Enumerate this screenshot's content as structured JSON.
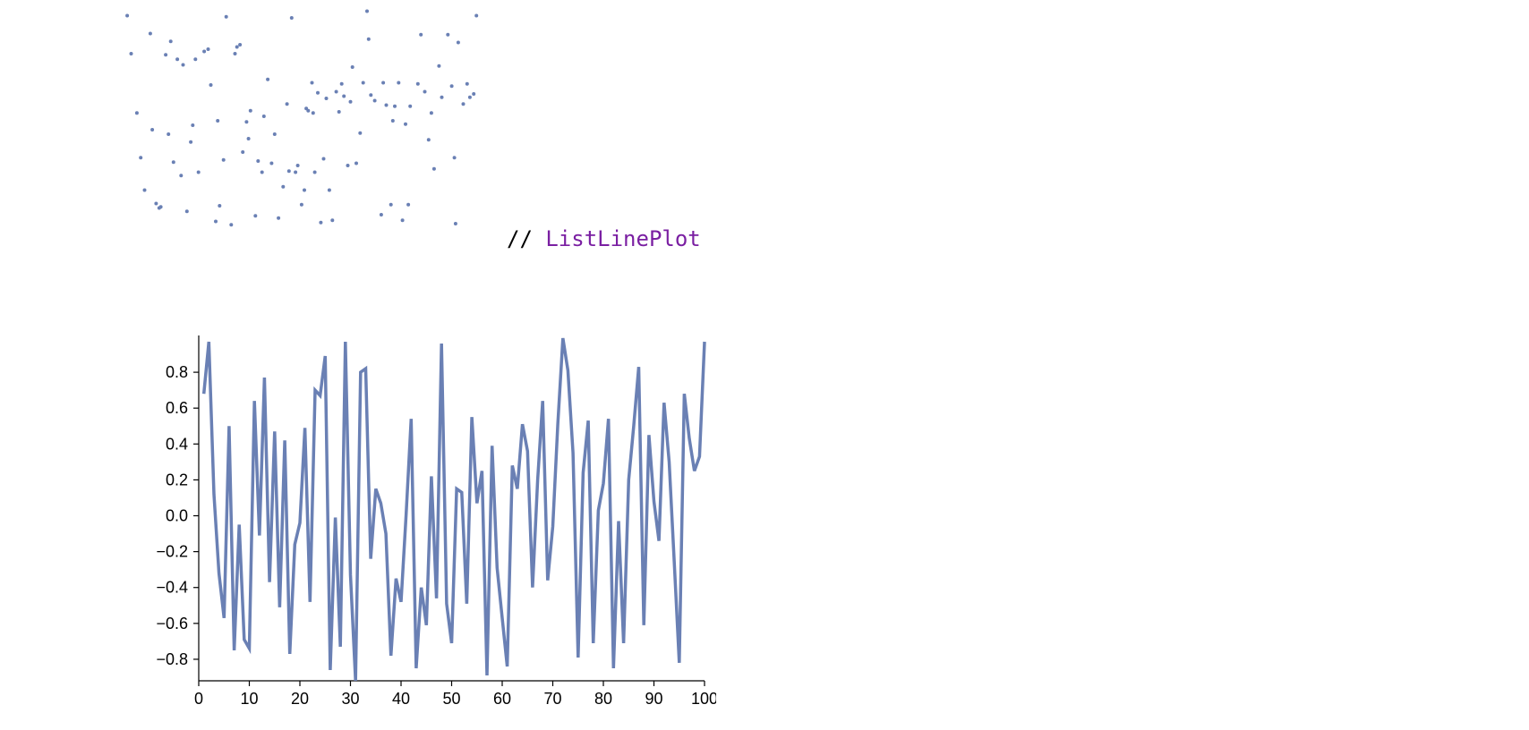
{
  "code_comment": {
    "slashes": "// ",
    "keyword": "ListLinePlot"
  },
  "colors": {
    "series": "#6a80b4",
    "keyword": "#7a1fa2"
  },
  "chart_data": [
    {
      "type": "scatter",
      "xlim": [
        0,
        1
      ],
      "ylim": [
        0,
        1
      ],
      "series": [
        {
          "points": [
            [
              0.005,
              0.97
            ],
            [
              0.015,
              0.8
            ],
            [
              0.03,
              0.535
            ],
            [
              0.04,
              0.335
            ],
            [
              0.05,
              0.19
            ],
            [
              0.065,
              0.89
            ],
            [
              0.07,
              0.46
            ],
            [
              0.08,
              0.13
            ],
            [
              0.088,
              0.11
            ],
            [
              0.092,
              0.115
            ],
            [
              0.105,
              0.795
            ],
            [
              0.112,
              0.44
            ],
            [
              0.118,
              0.855
            ],
            [
              0.125,
              0.315
            ],
            [
              0.135,
              0.775
            ],
            [
              0.145,
              0.255
            ],
            [
              0.15,
              0.75
            ],
            [
              0.16,
              0.095
            ],
            [
              0.17,
              0.405
            ],
            [
              0.175,
              0.48
            ],
            [
              0.182,
              0.775
            ],
            [
              0.19,
              0.27
            ],
            [
              0.205,
              0.81
            ],
            [
              0.215,
              0.82
            ],
            [
              0.222,
              0.66
            ],
            [
              0.235,
              0.05
            ],
            [
              0.24,
              0.5
            ],
            [
              0.245,
              0.12
            ],
            [
              0.255,
              0.325
            ],
            [
              0.262,
              0.965
            ],
            [
              0.275,
              0.035
            ],
            [
              0.285,
              0.8
            ],
            [
              0.29,
              0.83
            ],
            [
              0.298,
              0.84
            ],
            [
              0.305,
              0.36
            ],
            [
              0.315,
              0.495
            ],
            [
              0.32,
              0.42
            ],
            [
              0.325,
              0.545
            ],
            [
              0.338,
              0.075
            ],
            [
              0.345,
              0.32
            ],
            [
              0.355,
              0.27
            ],
            [
              0.36,
              0.52
            ],
            [
              0.37,
              0.685
            ],
            [
              0.38,
              0.31
            ],
            [
              0.388,
              0.44
            ],
            [
              0.398,
              0.065
            ],
            [
              0.41,
              0.205
            ],
            [
              0.42,
              0.575
            ],
            [
              0.425,
              0.275
            ],
            [
              0.432,
              0.96
            ],
            [
              0.442,
              0.27
            ],
            [
              0.448,
              0.3
            ],
            [
              0.458,
              0.125
            ],
            [
              0.465,
              0.19
            ],
            [
              0.47,
              0.555
            ],
            [
              0.475,
              0.545
            ],
            [
              0.485,
              0.67
            ],
            [
              0.488,
              0.535
            ],
            [
              0.492,
              0.27
            ],
            [
              0.5,
              0.625
            ],
            [
              0.508,
              0.045
            ],
            [
              0.515,
              0.33
            ],
            [
              0.522,
              0.6
            ],
            [
              0.53,
              0.19
            ],
            [
              0.538,
              0.055
            ],
            [
              0.548,
              0.63
            ],
            [
              0.555,
              0.54
            ],
            [
              0.562,
              0.665
            ],
            [
              0.568,
              0.61
            ],
            [
              0.578,
              0.3
            ],
            [
              0.585,
              0.585
            ],
            [
              0.59,
              0.74
            ],
            [
              0.6,
              0.31
            ],
            [
              0.61,
              0.445
            ],
            [
              0.618,
              0.67
            ],
            [
              0.628,
              0.99
            ],
            [
              0.632,
              0.865
            ],
            [
              0.638,
              0.615
            ],
            [
              0.648,
              0.59
            ],
            [
              0.665,
              0.08
            ],
            [
              0.67,
              0.67
            ],
            [
              0.678,
              0.57
            ],
            [
              0.69,
              0.125
            ],
            [
              0.695,
              0.5
            ],
            [
              0.7,
              0.565
            ],
            [
              0.71,
              0.67
            ],
            [
              0.72,
              0.055
            ],
            [
              0.728,
              0.485
            ],
            [
              0.735,
              0.125
            ],
            [
              0.74,
              0.565
            ],
            [
              0.76,
              0.665
            ],
            [
              0.768,
              0.885
            ],
            [
              0.778,
              0.63
            ],
            [
              0.788,
              0.415
            ],
            [
              0.795,
              0.535
            ],
            [
              0.802,
              0.285
            ],
            [
              0.815,
              0.745
            ],
            [
              0.822,
              0.605
            ],
            [
              0.838,
              0.885
            ],
            [
              0.848,
              0.655
            ],
            [
              0.855,
              0.335
            ],
            [
              0.858,
              0.04
            ],
            [
              0.865,
              0.85
            ],
            [
              0.878,
              0.575
            ],
            [
              0.888,
              0.665
            ],
            [
              0.895,
              0.605
            ],
            [
              0.905,
              0.62
            ],
            [
              0.912,
              0.97
            ]
          ]
        }
      ]
    },
    {
      "type": "line",
      "xlim": [
        0,
        100
      ],
      "ylim": [
        -0.92,
        0.98
      ],
      "xticks": [
        "0",
        "10",
        "20",
        "30",
        "40",
        "50",
        "60",
        "70",
        "80",
        "90",
        "100"
      ],
      "yticks": [
        "0.8",
        "0.6",
        "0.4",
        "0.2",
        "0.0",
        "−0.2",
        "−0.4",
        "−0.6",
        "−0.8"
      ],
      "xlabel": "",
      "ylabel": "",
      "series": [
        {
          "x": [
            1,
            2,
            3,
            4,
            5,
            6,
            7,
            8,
            9,
            10,
            11,
            12,
            13,
            14,
            15,
            16,
            17,
            18,
            19,
            20,
            21,
            22,
            23,
            24,
            25,
            26,
            27,
            28,
            29,
            30,
            31,
            32,
            33,
            34,
            35,
            36,
            37,
            38,
            39,
            40,
            41,
            42,
            43,
            44,
            45,
            46,
            47,
            48,
            49,
            50,
            51,
            52,
            53,
            54,
            55,
            56,
            57,
            58,
            59,
            60,
            61,
            62,
            63,
            64,
            65,
            66,
            67,
            68,
            69,
            70,
            71,
            72,
            73,
            74,
            75,
            76,
            77,
            78,
            79,
            80,
            81,
            82,
            83,
            84,
            85,
            86,
            87,
            88,
            89,
            90,
            91,
            92,
            93,
            94,
            95,
            96,
            97,
            98,
            99,
            100
          ],
          "values": [
            0.68,
            0.97,
            0.12,
            -0.32,
            -0.57,
            0.5,
            -0.75,
            -0.05,
            -0.69,
            -0.74,
            0.64,
            -0.11,
            0.77,
            -0.37,
            0.47,
            -0.51,
            0.42,
            -0.77,
            -0.16,
            -0.04,
            0.49,
            -0.48,
            0.7,
            0.67,
            0.89,
            -0.86,
            -0.01,
            -0.73,
            0.97,
            -0.33,
            -0.92,
            0.8,
            0.82,
            -0.24,
            0.15,
            0.07,
            -0.1,
            -0.78,
            -0.35,
            -0.48,
            0.0,
            0.54,
            -0.85,
            -0.4,
            -0.61,
            0.22,
            -0.46,
            0.96,
            -0.49,
            -0.71,
            0.15,
            0.13,
            -0.49,
            0.55,
            0.07,
            0.25,
            -0.89,
            0.39,
            -0.29,
            -0.57,
            -0.84,
            0.28,
            0.15,
            0.51,
            0.36,
            -0.4,
            0.2,
            0.64,
            -0.36,
            -0.06,
            0.51,
            0.99,
            0.81,
            0.35,
            -0.79,
            0.24,
            0.53,
            -0.71,
            0.03,
            0.18,
            0.54,
            -0.85,
            -0.03,
            -0.71,
            0.2,
            0.5,
            0.83,
            -0.61,
            0.45,
            0.08,
            -0.14,
            0.63,
            0.3,
            -0.25,
            -0.82,
            0.68,
            0.43,
            0.25,
            0.33,
            0.97
          ]
        }
      ]
    }
  ]
}
